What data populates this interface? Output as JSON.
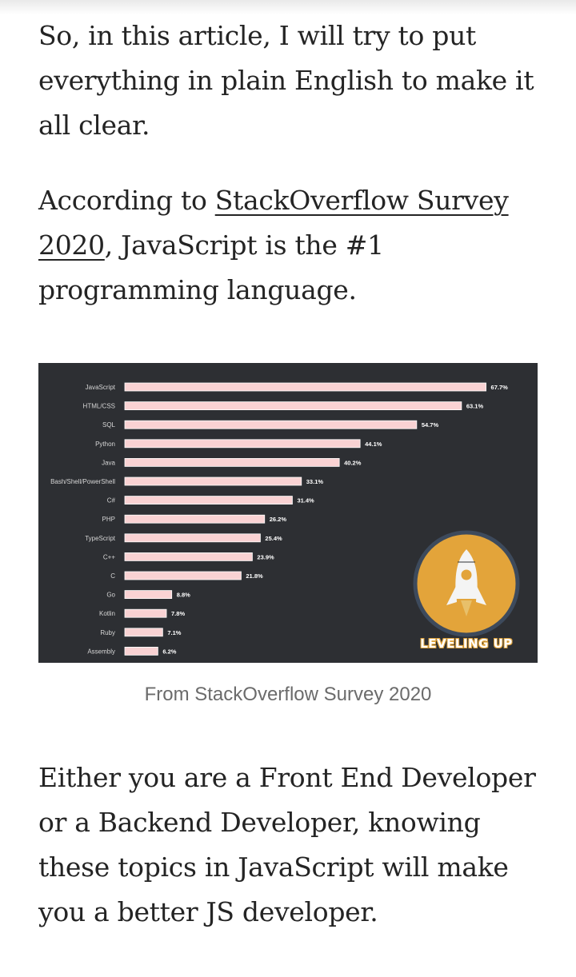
{
  "paragraphs": {
    "p1": "So, in this article, I will try to put everything in plain English to make it all clear.",
    "p2_before": "According to ",
    "p2_link": "StackOverflow Survey 2020",
    "p2_after": ", JavaScript is the #1 programming language.",
    "p3": "Either you are a Front End Developer or a Backend Developer, knowing these topics in JavaScript will make you a better JS developer."
  },
  "figure": {
    "caption": "From StackOverflow Survey 2020",
    "logo_text": "LEVELING UP",
    "background_color": "#2d2f33",
    "bar_color": "#f9d2d3",
    "logo_color": "#e3a43a"
  },
  "chart_data": {
    "type": "bar",
    "orientation": "horizontal",
    "title": "",
    "xlabel": "",
    "ylabel": "",
    "xlim": [
      0,
      70
    ],
    "categories": [
      "JavaScript",
      "HTML/CSS",
      "SQL",
      "Python",
      "Java",
      "Bash/Shell/PowerShell",
      "C#",
      "PHP",
      "TypeScript",
      "C++",
      "C",
      "Go",
      "Kotlin",
      "Ruby",
      "Assembly"
    ],
    "values": [
      67.7,
      63.1,
      54.7,
      44.1,
      40.2,
      33.1,
      31.4,
      26.2,
      25.4,
      23.9,
      21.8,
      8.8,
      7.8,
      7.1,
      6.2
    ],
    "value_labels": [
      "67.7%",
      "63.1%",
      "54.7%",
      "44.1%",
      "40.2%",
      "33.1%",
      "31.4%",
      "26.2%",
      "25.4%",
      "23.9%",
      "21.8%",
      "8.8%",
      "7.8%",
      "7.1%",
      "6.2%"
    ],
    "grid": false,
    "legend": "none"
  }
}
